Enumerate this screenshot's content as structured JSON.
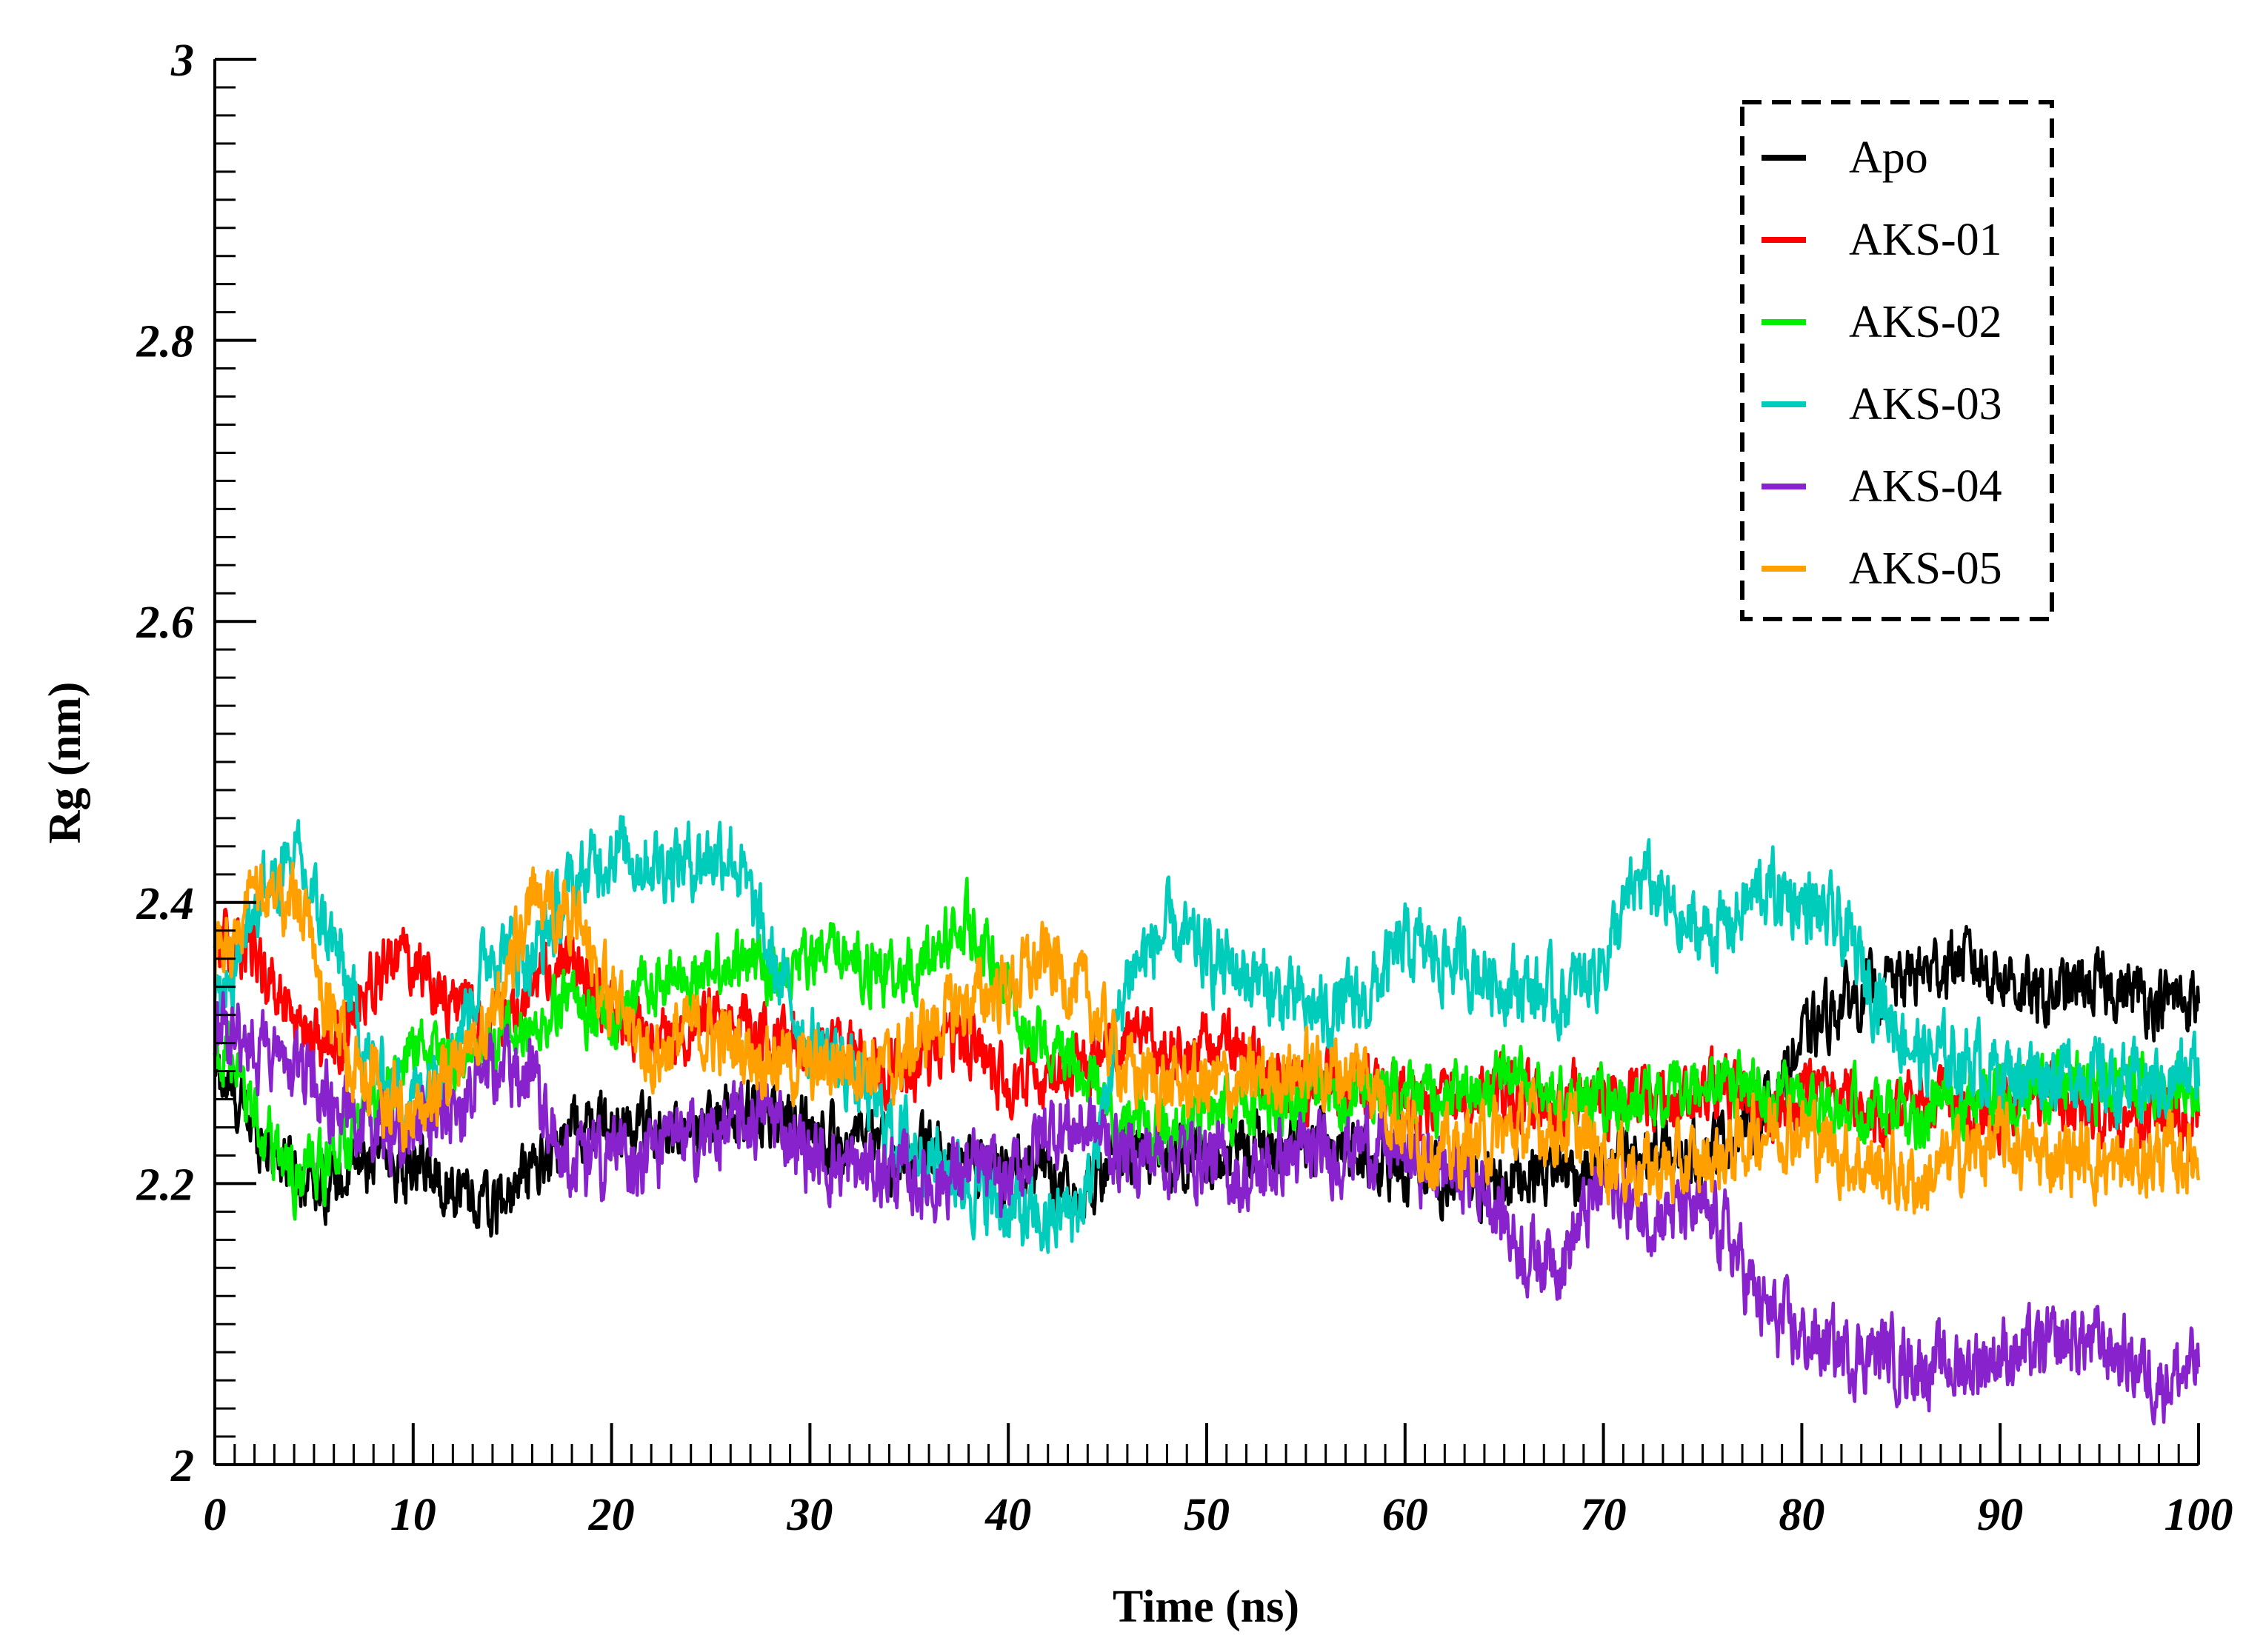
{
  "chart_data": {
    "type": "line",
    "title": "",
    "xlabel": "Time (ns)",
    "ylabel": "Rg (nm)",
    "xlim": [
      0,
      100
    ],
    "ylim": [
      2,
      3
    ],
    "xticks": [
      "0",
      "10",
      "20",
      "30",
      "40",
      "50",
      "60",
      "70",
      "80",
      "90",
      "100"
    ],
    "yticks": [
      "2",
      "2.2",
      "2.4",
      "2.6",
      "2.8",
      "3"
    ],
    "x_minor_step": 1,
    "y_minor_step": 0.02,
    "grid": false,
    "legend_position": "top-right",
    "x": [
      0,
      2,
      4,
      6,
      8,
      10,
      12,
      14,
      16,
      18,
      20,
      22,
      24,
      26,
      28,
      30,
      32,
      34,
      36,
      38,
      40,
      42,
      44,
      46,
      48,
      50,
      52,
      54,
      56,
      58,
      60,
      62,
      64,
      66,
      68,
      70,
      72,
      74,
      76,
      78,
      80,
      82,
      84,
      86,
      88,
      90,
      92,
      94,
      96,
      98,
      100
    ],
    "series": [
      {
        "name": "Apo",
        "color": "#000000",
        "noise": 0.03,
        "values": [
          2.28,
          2.24,
          2.21,
          2.2,
          2.22,
          2.21,
          2.2,
          2.18,
          2.21,
          2.24,
          2.24,
          2.24,
          2.23,
          2.25,
          2.25,
          2.24,
          2.23,
          2.22,
          2.22,
          2.22,
          2.21,
          2.21,
          2.2,
          2.22,
          2.22,
          2.22,
          2.23,
          2.22,
          2.23,
          2.22,
          2.21,
          2.2,
          2.2,
          2.21,
          2.21,
          2.21,
          2.22,
          2.22,
          2.23,
          2.25,
          2.3,
          2.33,
          2.34,
          2.35,
          2.36,
          2.35,
          2.33,
          2.34,
          2.34,
          2.33,
          2.33
        ]
      },
      {
        "name": "AKS-01",
        "color": "#ff0000",
        "noise": 0.03,
        "values": [
          2.38,
          2.36,
          2.32,
          2.29,
          2.35,
          2.36,
          2.33,
          2.31,
          2.34,
          2.36,
          2.32,
          2.3,
          2.31,
          2.32,
          2.3,
          2.3,
          2.3,
          2.28,
          2.29,
          2.3,
          2.27,
          2.28,
          2.29,
          2.31,
          2.29,
          2.3,
          2.29,
          2.27,
          2.27,
          2.27,
          2.26,
          2.26,
          2.27,
          2.26,
          2.26,
          2.26,
          2.26,
          2.26,
          2.27,
          2.26,
          2.26,
          2.26,
          2.25,
          2.26,
          2.25,
          2.25,
          2.26,
          2.25,
          2.25,
          2.25,
          2.24
        ]
      },
      {
        "name": "AKS-02",
        "color": "#00ee00",
        "noise": 0.03,
        "values": [
          2.3,
          2.25,
          2.2,
          2.22,
          2.25,
          2.3,
          2.29,
          2.3,
          2.31,
          2.33,
          2.32,
          2.34,
          2.35,
          2.36,
          2.35,
          2.36,
          2.36,
          2.35,
          2.36,
          2.39,
          2.33,
          2.3,
          2.27,
          2.25,
          2.24,
          2.25,
          2.25,
          2.26,
          2.26,
          2.27,
          2.26,
          2.26,
          2.27,
          2.27,
          2.26,
          2.26,
          2.26,
          2.26,
          2.27,
          2.27,
          2.26,
          2.26,
          2.25,
          2.25,
          2.26,
          2.26,
          2.27,
          2.27,
          2.27,
          2.27,
          2.27
        ]
      },
      {
        "name": "AKS-03",
        "color": "#00ccbb",
        "noise": 0.035,
        "values": [
          2.32,
          2.4,
          2.43,
          2.37,
          2.28,
          2.26,
          2.3,
          2.37,
          2.36,
          2.41,
          2.44,
          2.43,
          2.43,
          2.44,
          2.36,
          2.3,
          2.28,
          2.24,
          2.22,
          2.2,
          2.18,
          2.17,
          2.19,
          2.35,
          2.38,
          2.36,
          2.35,
          2.33,
          2.32,
          2.33,
          2.37,
          2.36,
          2.35,
          2.34,
          2.33,
          2.36,
          2.42,
          2.38,
          2.38,
          2.41,
          2.4,
          2.38,
          2.33,
          2.29,
          2.29,
          2.28,
          2.28,
          2.28,
          2.27,
          2.27,
          2.28
        ]
      },
      {
        "name": "AKS-04",
        "color": "#8822cc",
        "noise": 0.035,
        "values": [
          2.31,
          2.3,
          2.28,
          2.26,
          2.24,
          2.24,
          2.25,
          2.28,
          2.28,
          2.21,
          2.22,
          2.22,
          2.23,
          2.24,
          2.25,
          2.22,
          2.21,
          2.21,
          2.2,
          2.21,
          2.2,
          2.24,
          2.24,
          2.22,
          2.22,
          2.22,
          2.2,
          2.22,
          2.22,
          2.23,
          2.22,
          2.21,
          2.2,
          2.15,
          2.15,
          2.2,
          2.18,
          2.18,
          2.17,
          2.11,
          2.09,
          2.08,
          2.08,
          2.07,
          2.07,
          2.08,
          2.08,
          2.09,
          2.08,
          2.06,
          2.07
        ]
      },
      {
        "name": "AKS-05",
        "color": "#ffa000",
        "noise": 0.035,
        "values": [
          2.35,
          2.4,
          2.41,
          2.31,
          2.27,
          2.25,
          2.28,
          2.32,
          2.4,
          2.39,
          2.33,
          2.29,
          2.31,
          2.3,
          2.29,
          2.28,
          2.29,
          2.28,
          2.31,
          2.33,
          2.34,
          2.36,
          2.33,
          2.28,
          2.27,
          2.27,
          2.27,
          2.28,
          2.28,
          2.28,
          2.24,
          2.22,
          2.23,
          2.24,
          2.24,
          2.22,
          2.21,
          2.21,
          2.22,
          2.24,
          2.24,
          2.22,
          2.21,
          2.2,
          2.22,
          2.23,
          2.22,
          2.22,
          2.21,
          2.22,
          2.22
        ]
      }
    ]
  }
}
